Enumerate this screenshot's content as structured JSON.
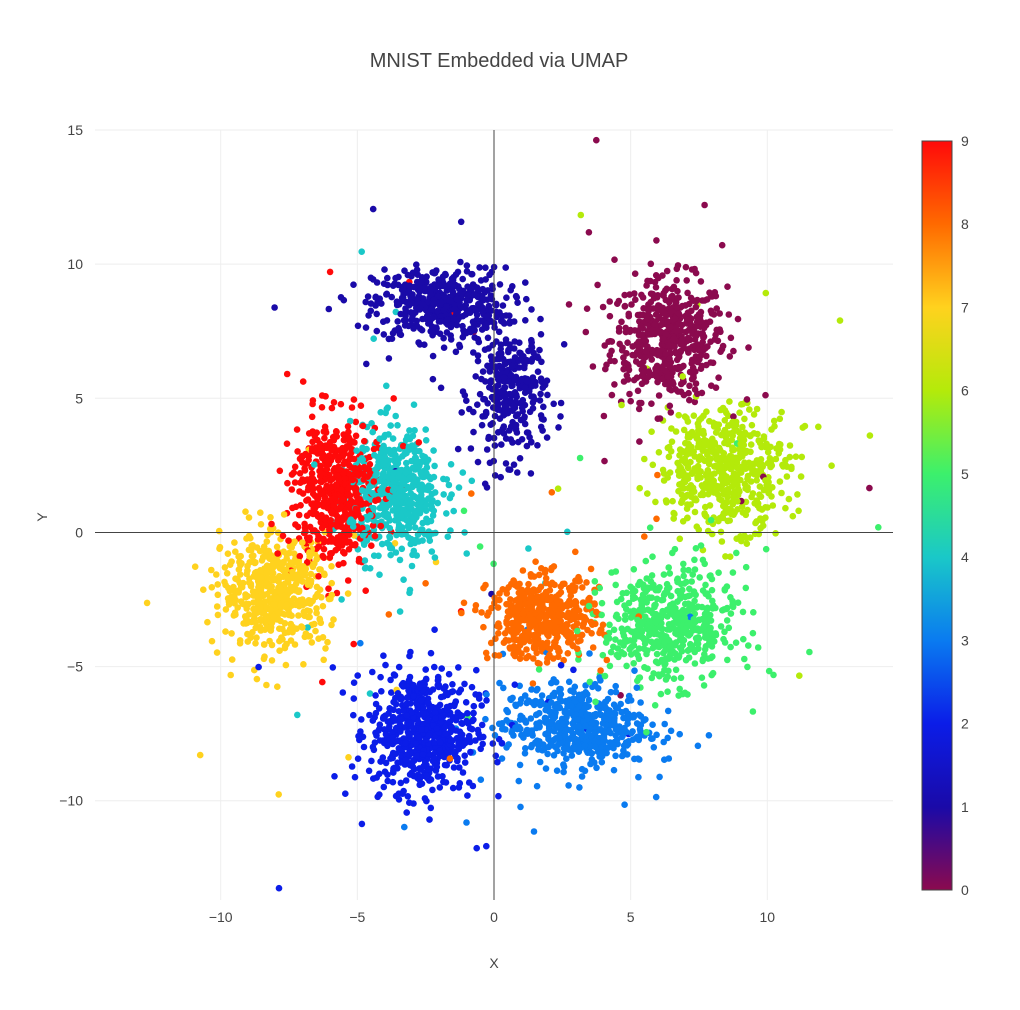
{
  "chart_data": {
    "type": "scatter",
    "title": "MNIST Embedded via UMAP",
    "xlabel": "X",
    "ylabel": "Y",
    "xlim": [
      -14.6,
      14.6
    ],
    "ylim": [
      -13.7,
      15.0
    ],
    "xticks": [
      -10,
      -5,
      0,
      5,
      10
    ],
    "xtick_labels": [
      "−10",
      "−5",
      "0",
      "5",
      "10"
    ],
    "yticks": [
      -10,
      -5,
      0,
      5,
      10,
      15
    ],
    "ytick_labels": [
      "−10",
      "−5",
      "0",
      "5",
      "10",
      "15"
    ],
    "grid": true,
    "zero_lines": true,
    "colorscale": "jet",
    "colorbar": {
      "range": [
        0,
        9
      ],
      "ticks": [
        0,
        1,
        2,
        3,
        4,
        5,
        6,
        7,
        8,
        9
      ],
      "tick_labels": [
        "0",
        "1",
        "2",
        "3",
        "4",
        "5",
        "6",
        "7",
        "8",
        "9"
      ],
      "colors": [
        "#8b0a4e",
        "#1a0aa8",
        "#0b1de8",
        "#0a7bf0",
        "#1ac8c8",
        "#3cf06c",
        "#b4ea0a",
        "#ffd21e",
        "#ff6a00",
        "#ff0a0a"
      ]
    },
    "clusters": [
      {
        "label": 0,
        "center": [
          6.4,
          7.2
        ],
        "spread": [
          1.4,
          1.5
        ],
        "n": 520
      },
      {
        "label": 1,
        "center": [
          -2.0,
          8.5
        ],
        "spread": [
          1.6,
          0.9
        ],
        "n": 450,
        "arc": true
      },
      {
        "label": 1,
        "center": [
          0.6,
          5.2
        ],
        "spread": [
          0.9,
          1.6
        ],
        "n": 300,
        "arc": true
      },
      {
        "label": 2,
        "center": [
          -2.6,
          -7.4
        ],
        "spread": [
          1.3,
          1.5
        ],
        "n": 620
      },
      {
        "label": 3,
        "center": [
          3.0,
          -7.2
        ],
        "spread": [
          1.8,
          1.0
        ],
        "n": 520
      },
      {
        "label": 4,
        "center": [
          -3.6,
          1.5
        ],
        "spread": [
          1.1,
          1.6
        ],
        "n": 520
      },
      {
        "label": 5,
        "center": [
          6.4,
          -3.5
        ],
        "spread": [
          1.6,
          1.4
        ],
        "n": 520
      },
      {
        "label": 6,
        "center": [
          8.4,
          2.4
        ],
        "spread": [
          1.6,
          1.5
        ],
        "n": 520
      },
      {
        "label": 7,
        "center": [
          -8.0,
          -2.2
        ],
        "spread": [
          1.3,
          1.4
        ],
        "n": 520
      },
      {
        "label": 8,
        "center": [
          1.8,
          -3.2
        ],
        "spread": [
          1.3,
          1.0
        ],
        "n": 480
      },
      {
        "label": 9,
        "center": [
          -5.8,
          1.6
        ],
        "spread": [
          1.0,
          1.8
        ],
        "n": 520
      }
    ]
  }
}
